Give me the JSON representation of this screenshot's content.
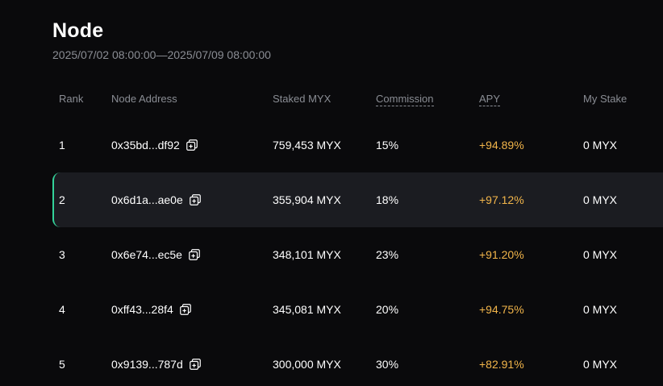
{
  "header": {
    "title": "Node",
    "date_range": "2025/07/02 08:00:00—2025/07/09 08:00:00"
  },
  "table": {
    "columns": {
      "rank": "Rank",
      "address": "Node Address",
      "staked": "Staked MYX",
      "commission": "Commission",
      "apy": "APY",
      "my_stake": "My Stake"
    },
    "rows": [
      {
        "rank": "1",
        "address": "0x35bd...df92",
        "staked": "759,453 MYX",
        "commission": "15%",
        "apy": "+94.89%",
        "my_stake": "0 MYX"
      },
      {
        "rank": "2",
        "address": "0x6d1a...ae0e",
        "staked": "355,904 MYX",
        "commission": "18%",
        "apy": "+97.12%",
        "my_stake": "0 MYX"
      },
      {
        "rank": "3",
        "address": "0x6e74...ec5e",
        "staked": "348,101 MYX",
        "commission": "23%",
        "apy": "+91.20%",
        "my_stake": "0 MYX"
      },
      {
        "rank": "4",
        "address": "0xff43...28f4",
        "staked": "345,081 MYX",
        "commission": "20%",
        "apy": "+94.75%",
        "my_stake": "0 MYX"
      },
      {
        "rank": "5",
        "address": "0x9139...787d",
        "staked": "300,000 MYX",
        "commission": "30%",
        "apy": "+82.91%",
        "my_stake": "0 MYX"
      }
    ],
    "highlighted_row": "2",
    "row_icon": "copy-icon"
  },
  "colors": {
    "background": "#0a0a0c",
    "highlight_row": "#1b1c21",
    "highlight_accent": "#33d39a",
    "apy": "#f2b54a",
    "muted_text": "#8a8d94"
  }
}
